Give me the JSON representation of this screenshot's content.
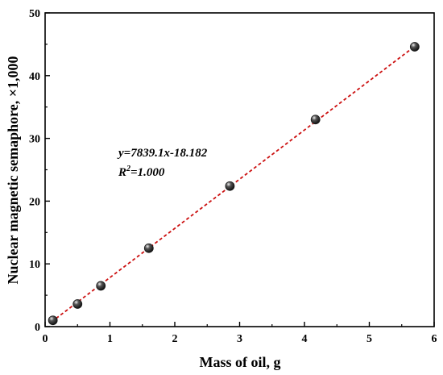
{
  "chart_data": {
    "type": "scatter",
    "xlabel": "Mass of oil, g",
    "ylabel": "Nuclear magnetic semaphore, ×1,000",
    "xlim": [
      0,
      6
    ],
    "ylim": [
      0,
      50
    ],
    "x_ticks": [
      0,
      1,
      2,
      3,
      4,
      5,
      6
    ],
    "y_ticks": [
      0,
      10,
      20,
      30,
      40,
      50
    ],
    "series": [
      {
        "x": [
          0.12,
          0.5,
          0.86,
          1.6,
          2.85,
          4.17,
          5.7
        ],
        "y": [
          1.0,
          3.6,
          6.5,
          12.5,
          22.4,
          33.0,
          44.6
        ]
      }
    ],
    "fit_line": {
      "slope": 7.8391,
      "intercept": -0.018182,
      "x_range": [
        0.1,
        5.75
      ]
    },
    "annotations": {
      "equation": "y=7839.1x-18.182",
      "r2_prefix": "R",
      "r2_exp": "2",
      "r2_value": "=1.000"
    },
    "colors": {
      "fit_line": "#cc1111",
      "marker": "#1a1a1a",
      "marker_highlight": "#e8e8e8"
    },
    "grid": false,
    "legend": "none"
  }
}
